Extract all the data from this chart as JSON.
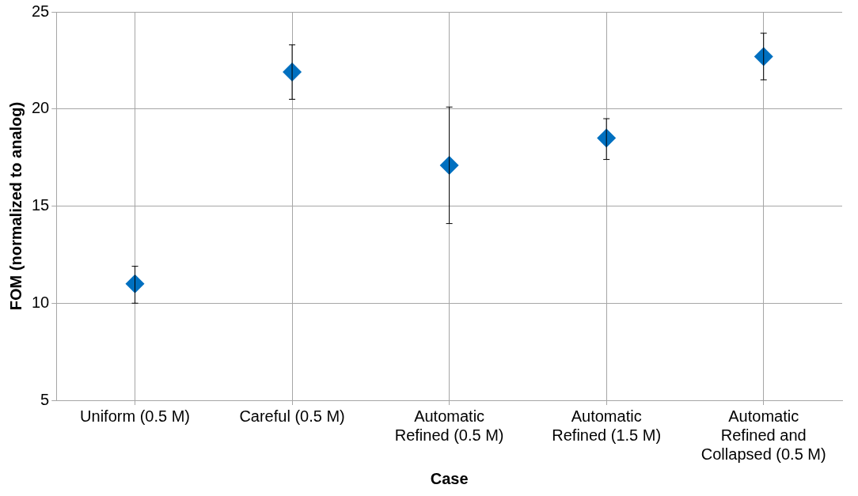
{
  "chart_data": {
    "type": "scatter",
    "xlabel": "Case",
    "ylabel": "FOM (normalized to analog)",
    "categories": [
      "Uniform (0.5 M)",
      "Careful (0.5 M)",
      "Automatic Refined (0.5 M)",
      "Automatic Refined (1.5 M)",
      "Automatic Refined and Collapsed (0.5 M)"
    ],
    "series": [
      {
        "color": "#0070c0",
        "values": [
          11.0,
          21.9,
          17.1,
          18.5,
          22.7
        ],
        "errors": [
          [
            10.0,
            11.9
          ],
          [
            20.5,
            23.3
          ],
          [
            14.1,
            20.1
          ],
          [
            17.4,
            19.5
          ],
          [
            21.5,
            23.9
          ]
        ]
      }
    ],
    "ylim": [
      5,
      25
    ],
    "yticks": [
      5,
      10,
      15,
      20,
      25
    ],
    "grid": true,
    "legend": false,
    "marker": "diamond"
  }
}
